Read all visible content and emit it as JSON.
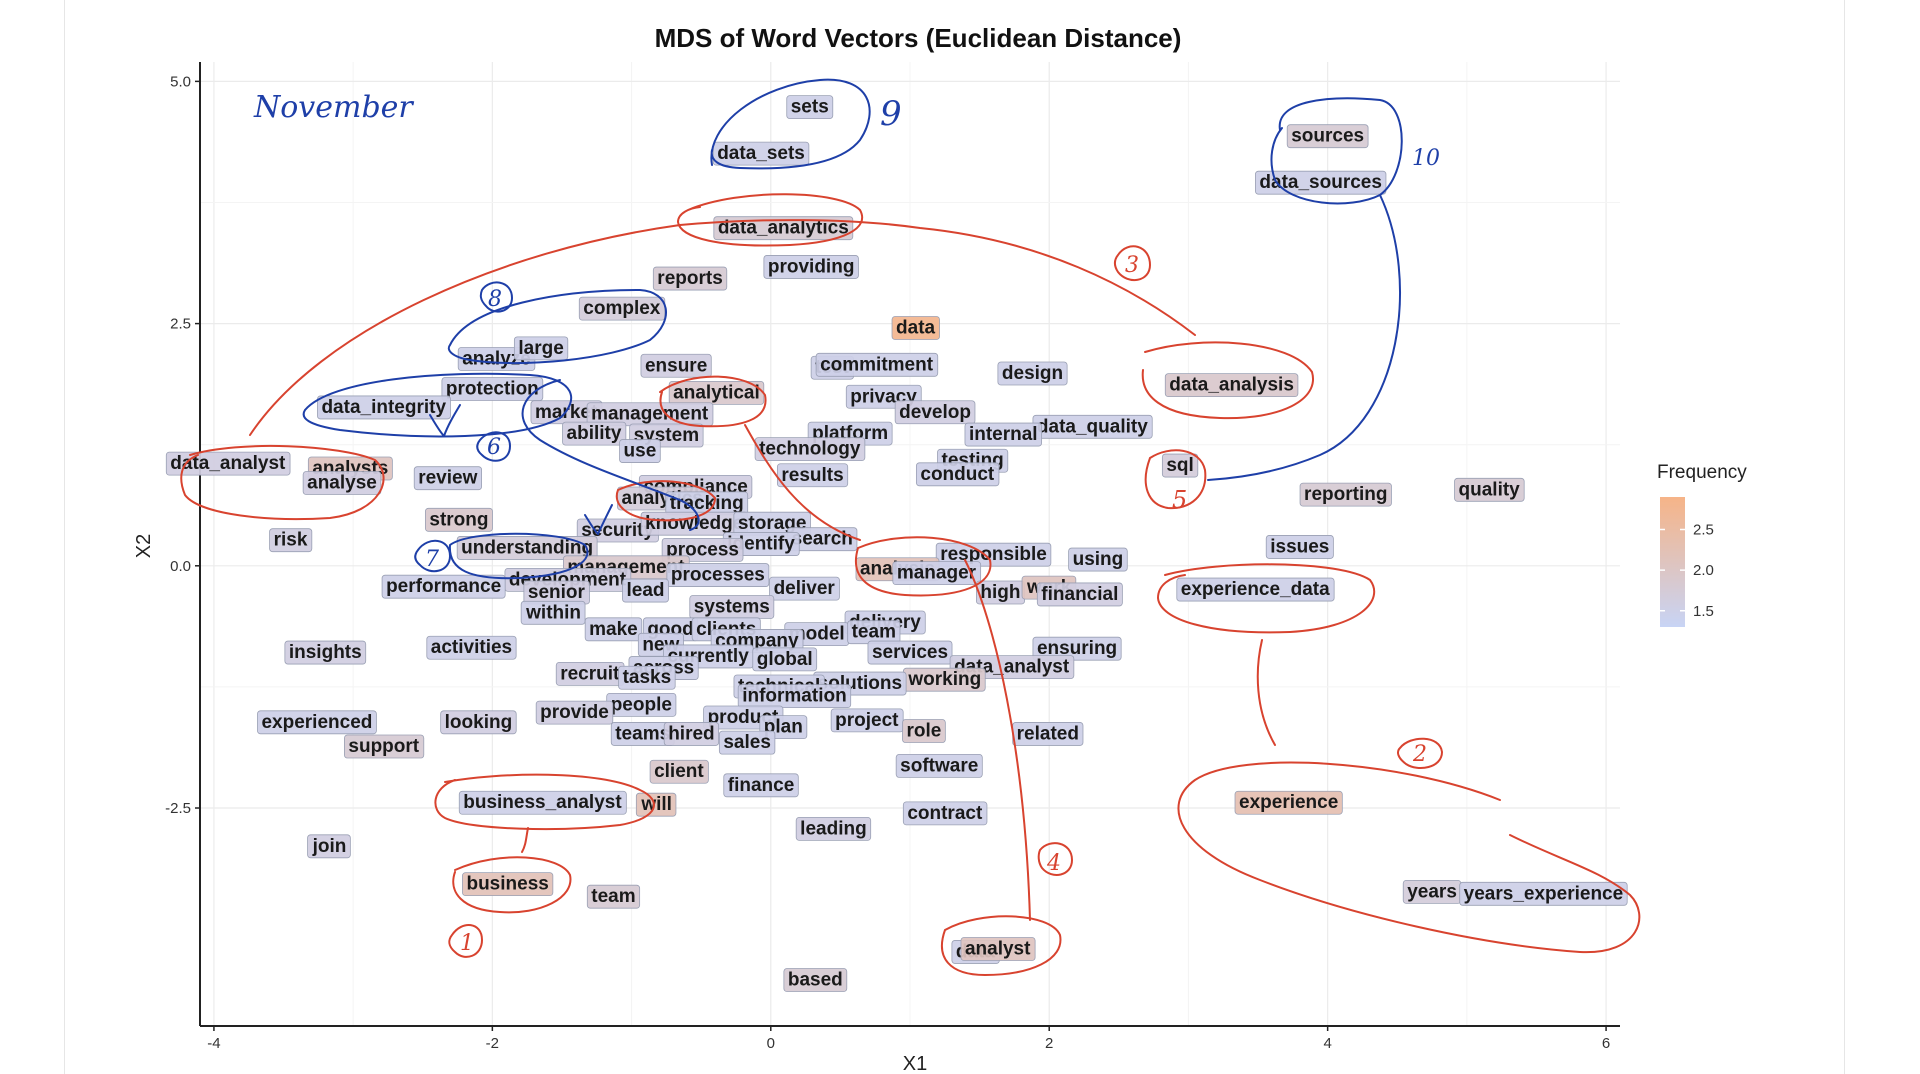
{
  "chart_data": {
    "type": "scatter",
    "title": "MDS of Word Vectors (Euclidean Distance)",
    "xlabel": "X1",
    "ylabel": "X2",
    "xlim": [
      -4.1,
      6.1
    ],
    "ylim": [
      -4.75,
      5.2
    ],
    "x_ticks": [
      -4,
      -2,
      0,
      2,
      4,
      6
    ],
    "x_tick_labels": [
      "-4",
      "-2",
      "0",
      "2",
      "4",
      "6"
    ],
    "y_ticks": [
      -2.5,
      0.0,
      2.5,
      5.0
    ],
    "y_tick_labels": [
      "-2.5",
      "0.0",
      "2.5",
      "5.0"
    ],
    "grid": true,
    "legend": {
      "title": "Frequency",
      "position": "right",
      "ticks": [
        2.5,
        2.0,
        1.5
      ],
      "tick_labels": [
        "2.5",
        "2.0",
        "1.5"
      ],
      "range": [
        1.3,
        2.9
      ],
      "low_color": "#c8d4f5",
      "high_color": "#f6b488"
    },
    "points": [
      {
        "label": "sets",
        "x": 0.28,
        "y": 4.75,
        "f": 1.5
      },
      {
        "label": "data_sets",
        "x": -0.07,
        "y": 4.27,
        "f": 1.5
      },
      {
        "label": "sources",
        "x": 4.0,
        "y": 4.45,
        "f": 1.8
      },
      {
        "label": "data_sources",
        "x": 3.95,
        "y": 3.97,
        "f": 1.5
      },
      {
        "label": "data_analytics",
        "x": 0.09,
        "y": 3.5,
        "f": 1.8
      },
      {
        "label": "providing",
        "x": 0.29,
        "y": 3.1,
        "f": 1.5
      },
      {
        "label": "reports",
        "x": -0.58,
        "y": 2.98,
        "f": 1.8
      },
      {
        "label": "complex",
        "x": -1.07,
        "y": 2.67,
        "f": 1.7
      },
      {
        "label": "data",
        "x": 1.04,
        "y": 2.47,
        "f": 2.8
      },
      {
        "label": "analyze",
        "x": -1.97,
        "y": 2.15,
        "f": 1.5
      },
      {
        "label": "large",
        "x": -1.65,
        "y": 2.26,
        "f": 1.5
      },
      {
        "label": "ensure",
        "x": -0.68,
        "y": 2.08,
        "f": 1.6
      },
      {
        "label": "test",
        "x": 0.44,
        "y": 2.06,
        "f": 1.5
      },
      {
        "label": "commitment",
        "x": 0.76,
        "y": 2.09,
        "f": 1.5
      },
      {
        "label": "design",
        "x": 1.88,
        "y": 2.0,
        "f": 1.5
      },
      {
        "label": "data_analysis",
        "x": 3.31,
        "y": 1.88,
        "f": 1.9
      },
      {
        "label": "protection",
        "x": -2.0,
        "y": 1.84,
        "f": 1.5
      },
      {
        "label": "analytical",
        "x": -0.39,
        "y": 1.8,
        "f": 1.9
      },
      {
        "label": "privacy",
        "x": 0.81,
        "y": 1.76,
        "f": 1.5
      },
      {
        "label": "data_integrity",
        "x": -2.78,
        "y": 1.65,
        "f": 1.5
      },
      {
        "label": "market",
        "x": -1.47,
        "y": 1.6,
        "f": 1.6
      },
      {
        "label": "management",
        "x": -0.87,
        "y": 1.58,
        "f": 1.6
      },
      {
        "label": "develop",
        "x": 1.18,
        "y": 1.6,
        "f": 1.6
      },
      {
        "label": "data_quality",
        "x": 2.31,
        "y": 1.45,
        "f": 1.5
      },
      {
        "label": "ability",
        "x": -1.27,
        "y": 1.38,
        "f": 1.6
      },
      {
        "label": "system",
        "x": -0.75,
        "y": 1.36,
        "f": 1.6
      },
      {
        "label": "platform",
        "x": 0.57,
        "y": 1.38,
        "f": 1.5
      },
      {
        "label": "internal",
        "x": 1.67,
        "y": 1.37,
        "f": 1.5
      },
      {
        "label": "technology",
        "x": 0.28,
        "y": 1.22,
        "f": 1.6
      },
      {
        "label": "use",
        "x": -0.94,
        "y": 1.2,
        "f": 1.5
      },
      {
        "label": "data_analyst",
        "x": -3.9,
        "y": 1.07,
        "f": 1.6
      },
      {
        "label": "analysts",
        "x": -3.02,
        "y": 1.02,
        "f": 2.1
      },
      {
        "label": "analyse",
        "x": -3.08,
        "y": 0.87,
        "f": 1.6
      },
      {
        "label": "review",
        "x": -2.32,
        "y": 0.92,
        "f": 1.5
      },
      {
        "label": "testing",
        "x": 1.45,
        "y": 1.1,
        "f": 1.5
      },
      {
        "label": "sql",
        "x": 2.94,
        "y": 1.05,
        "f": 1.7
      },
      {
        "label": "results",
        "x": 0.3,
        "y": 0.95,
        "f": 1.5
      },
      {
        "label": "conduct",
        "x": 1.34,
        "y": 0.96,
        "f": 1.5
      },
      {
        "label": "reporting",
        "x": 4.13,
        "y": 0.75,
        "f": 1.8
      },
      {
        "label": "quality",
        "x": 5.16,
        "y": 0.8,
        "f": 1.8
      },
      {
        "label": "compliance",
        "x": -0.54,
        "y": 0.83,
        "f": 1.6
      },
      {
        "label": "analytics",
        "x": -0.78,
        "y": 0.71,
        "f": 1.7
      },
      {
        "label": "tracking",
        "x": -0.46,
        "y": 0.66,
        "f": 1.5
      },
      {
        "label": "strong",
        "x": -2.24,
        "y": 0.49,
        "f": 1.9
      },
      {
        "label": "security",
        "x": -1.1,
        "y": 0.38,
        "f": 1.6
      },
      {
        "label": "knowledge",
        "x": -0.55,
        "y": 0.45,
        "f": 1.6
      },
      {
        "label": "storage",
        "x": 0.01,
        "y": 0.45,
        "f": 1.5
      },
      {
        "label": "risk",
        "x": -3.45,
        "y": 0.28,
        "f": 1.6
      },
      {
        "label": "search",
        "x": 0.37,
        "y": 0.29,
        "f": 1.5
      },
      {
        "label": "identify",
        "x": -0.07,
        "y": 0.24,
        "f": 1.5
      },
      {
        "label": "understanding",
        "x": -1.75,
        "y": 0.2,
        "f": 1.7
      },
      {
        "label": "process",
        "x": -0.49,
        "y": 0.18,
        "f": 1.6
      },
      {
        "label": "responsible",
        "x": 1.6,
        "y": 0.13,
        "f": 1.5
      },
      {
        "label": "using",
        "x": 2.35,
        "y": 0.08,
        "f": 1.5
      },
      {
        "label": "issues",
        "x": 3.8,
        "y": 0.21,
        "f": 1.5
      },
      {
        "label": "analysis",
        "x": 0.91,
        "y": -0.02,
        "f": 2.2
      },
      {
        "label": "manager",
        "x": 1.19,
        "y": -0.06,
        "f": 1.5
      },
      {
        "label": "management",
        "x": -1.04,
        "y": 0.0,
        "f": 1.9
      },
      {
        "label": "development",
        "x": -1.46,
        "y": -0.13,
        "f": 1.6
      },
      {
        "label": "processes",
        "x": -0.38,
        "y": -0.08,
        "f": 1.5
      },
      {
        "label": "performance",
        "x": -2.35,
        "y": -0.2,
        "f": 1.5
      },
      {
        "label": "senior",
        "x": -1.54,
        "y": -0.26,
        "f": 1.6
      },
      {
        "label": "lead",
        "x": -0.9,
        "y": -0.24,
        "f": 1.5
      },
      {
        "label": "deliver",
        "x": 0.24,
        "y": -0.22,
        "f": 1.5
      },
      {
        "label": "high",
        "x": 1.65,
        "y": -0.26,
        "f": 1.6
      },
      {
        "label": "work",
        "x": 2.0,
        "y": -0.21,
        "f": 2.1
      },
      {
        "label": "financial",
        "x": 2.22,
        "y": -0.28,
        "f": 1.6
      },
      {
        "label": "experience_data",
        "x": 3.48,
        "y": -0.23,
        "f": 1.5
      },
      {
        "label": "systems",
        "x": -0.28,
        "y": -0.41,
        "f": 1.6
      },
      {
        "label": "within",
        "x": -1.56,
        "y": -0.47,
        "f": 1.5
      },
      {
        "label": "delivery",
        "x": 0.82,
        "y": -0.57,
        "f": 1.5
      },
      {
        "label": "make",
        "x": -1.13,
        "y": -0.64,
        "f": 1.5
      },
      {
        "label": "good",
        "x": -0.72,
        "y": -0.64,
        "f": 1.5
      },
      {
        "label": "clients",
        "x": -0.32,
        "y": -0.64,
        "f": 1.5
      },
      {
        "label": "model",
        "x": 0.33,
        "y": -0.69,
        "f": 1.5
      },
      {
        "label": "team",
        "x": 0.74,
        "y": -0.67,
        "f": 1.5
      },
      {
        "label": "new",
        "x": -0.79,
        "y": -0.8,
        "f": 1.5
      },
      {
        "label": "company",
        "x": -0.1,
        "y": -0.76,
        "f": 1.5
      },
      {
        "label": "activities",
        "x": -2.15,
        "y": -0.83,
        "f": 1.5
      },
      {
        "label": "insights",
        "x": -3.2,
        "y": -0.88,
        "f": 1.6
      },
      {
        "label": "services",
        "x": 1.0,
        "y": -0.88,
        "f": 1.5
      },
      {
        "label": "ensuring",
        "x": 2.2,
        "y": -0.84,
        "f": 1.5
      },
      {
        "label": "currently",
        "x": -0.45,
        "y": -0.92,
        "f": 1.5
      },
      {
        "label": "global",
        "x": 0.1,
        "y": -0.95,
        "f": 1.5
      },
      {
        "label": "data_analyst",
        "x": 1.73,
        "y": -1.03,
        "f": 1.6
      },
      {
        "label": "recruit",
        "x": -1.3,
        "y": -1.1,
        "f": 1.6
      },
      {
        "label": "across",
        "x": -0.77,
        "y": -1.04,
        "f": 1.5
      },
      {
        "label": "tasks",
        "x": -0.89,
        "y": -1.14,
        "f": 1.5
      },
      {
        "label": "working",
        "x": 1.25,
        "y": -1.16,
        "f": 1.9
      },
      {
        "label": "solutions",
        "x": 0.64,
        "y": -1.2,
        "f": 1.5
      },
      {
        "label": "technical",
        "x": 0.06,
        "y": -1.23,
        "f": 1.5
      },
      {
        "label": "information",
        "x": 0.17,
        "y": -1.33,
        "f": 1.5
      },
      {
        "label": "people",
        "x": -0.93,
        "y": -1.42,
        "f": 1.5
      },
      {
        "label": "provide",
        "x": -1.41,
        "y": -1.5,
        "f": 1.6
      },
      {
        "label": "product",
        "x": -0.2,
        "y": -1.55,
        "f": 1.5
      },
      {
        "label": "plan",
        "x": 0.09,
        "y": -1.65,
        "f": 1.5
      },
      {
        "label": "project",
        "x": 0.69,
        "y": -1.58,
        "f": 1.5
      },
      {
        "label": "experienced",
        "x": -3.26,
        "y": -1.6,
        "f": 1.5
      },
      {
        "label": "looking",
        "x": -2.1,
        "y": -1.6,
        "f": 1.6
      },
      {
        "label": "teams",
        "x": -0.92,
        "y": -1.72,
        "f": 1.5
      },
      {
        "label": "hired",
        "x": -0.57,
        "y": -1.72,
        "f": 1.6
      },
      {
        "label": "role",
        "x": 1.1,
        "y": -1.69,
        "f": 1.9
      },
      {
        "label": "related",
        "x": 1.99,
        "y": -1.72,
        "f": 1.5
      },
      {
        "label": "sales",
        "x": -0.17,
        "y": -1.81,
        "f": 1.5
      },
      {
        "label": "support",
        "x": -2.78,
        "y": -1.85,
        "f": 1.8
      },
      {
        "label": "software",
        "x": 1.21,
        "y": -2.05,
        "f": 1.5
      },
      {
        "label": "client",
        "x": -0.66,
        "y": -2.11,
        "f": 1.9
      },
      {
        "label": "finance",
        "x": -0.07,
        "y": -2.25,
        "f": 1.5
      },
      {
        "label": "experience",
        "x": 3.72,
        "y": -2.43,
        "f": 2.3
      },
      {
        "label": "business_analyst",
        "x": -1.64,
        "y": -2.43,
        "f": 1.5
      },
      {
        "label": "will",
        "x": -0.82,
        "y": -2.45,
        "f": 2.2
      },
      {
        "label": "contract",
        "x": 1.25,
        "y": -2.54,
        "f": 1.5
      },
      {
        "label": "leading",
        "x": 0.45,
        "y": -2.7,
        "f": 1.6
      },
      {
        "label": "join",
        "x": -3.17,
        "y": -2.88,
        "f": 1.6
      },
      {
        "label": "business",
        "x": -1.89,
        "y": -3.27,
        "f": 2.2
      },
      {
        "label": "team",
        "x": -1.13,
        "y": -3.4,
        "f": 1.8
      },
      {
        "label": "years",
        "x": 4.75,
        "y": -3.35,
        "f": 1.7
      },
      {
        "label": "years_experience",
        "x": 5.55,
        "y": -3.37,
        "f": 1.5
      },
      {
        "label": "data",
        "x": 1.47,
        "y": -3.97,
        "f": 1.5
      },
      {
        "label": "analyst",
        "x": 1.63,
        "y": -3.94,
        "f": 2.1
      },
      {
        "label": "based",
        "x": 0.32,
        "y": -4.26,
        "f": 1.8
      }
    ]
  },
  "annotations": {
    "month_note": "November",
    "numbers": [
      "1",
      "2",
      "3",
      "4",
      "5",
      "6",
      "7",
      "8",
      "9",
      "10"
    ],
    "red_ink": "#d8432f",
    "blue_ink": "#1e3fa8"
  }
}
